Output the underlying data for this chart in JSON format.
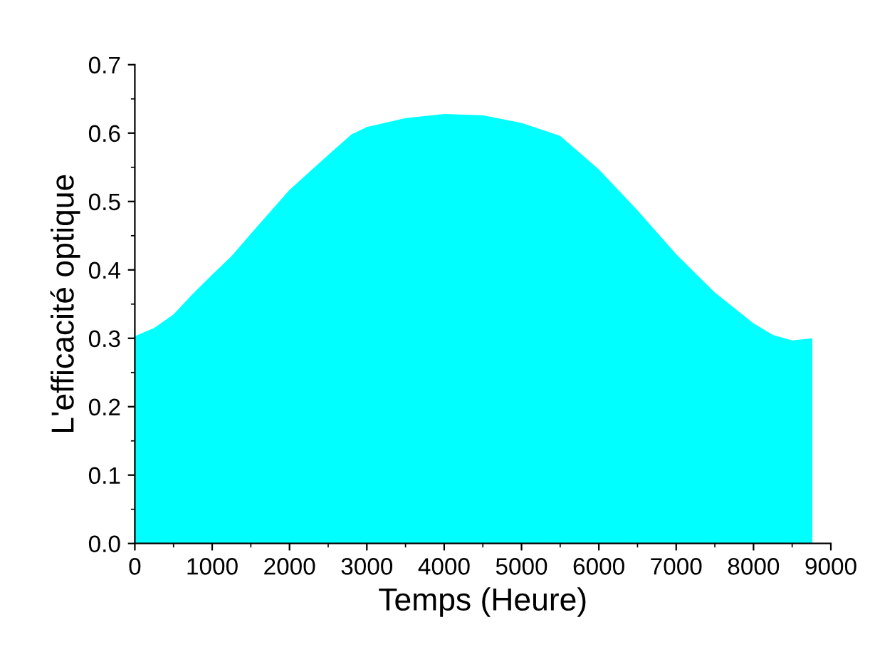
{
  "chart_data": {
    "type": "area",
    "xlabel": "Temps (Heure)",
    "ylabel": "L'efficacité optique",
    "x": [
      0,
      250,
      500,
      750,
      1000,
      1250,
      1500,
      2000,
      2500,
      2800,
      3000,
      3500,
      4000,
      4500,
      5000,
      5500,
      6000,
      6500,
      7000,
      7500,
      8000,
      8250,
      8500,
      8760
    ],
    "series": [
      {
        "color": "#00ffff",
        "values": [
          0.303,
          0.315,
          0.335,
          0.365,
          0.393,
          0.42,
          0.453,
          0.517,
          0.568,
          0.598,
          0.609,
          0.622,
          0.628,
          0.626,
          0.615,
          0.596,
          0.547,
          0.487,
          0.423,
          0.367,
          0.322,
          0.305,
          0.297,
          0.3
        ]
      }
    ],
    "xlim": [
      0,
      9000
    ],
    "xticks": [
      0,
      1000,
      2000,
      3000,
      4000,
      5000,
      6000,
      7000,
      8000,
      9000
    ],
    "ylim": [
      0,
      0.7
    ],
    "yticks": [
      {
        "value": 0,
        "label": "0.0"
      },
      0.1,
      0.2,
      0.3,
      0.4,
      0.5,
      0.6,
      0.7
    ],
    "grid": false,
    "legend": false
  }
}
